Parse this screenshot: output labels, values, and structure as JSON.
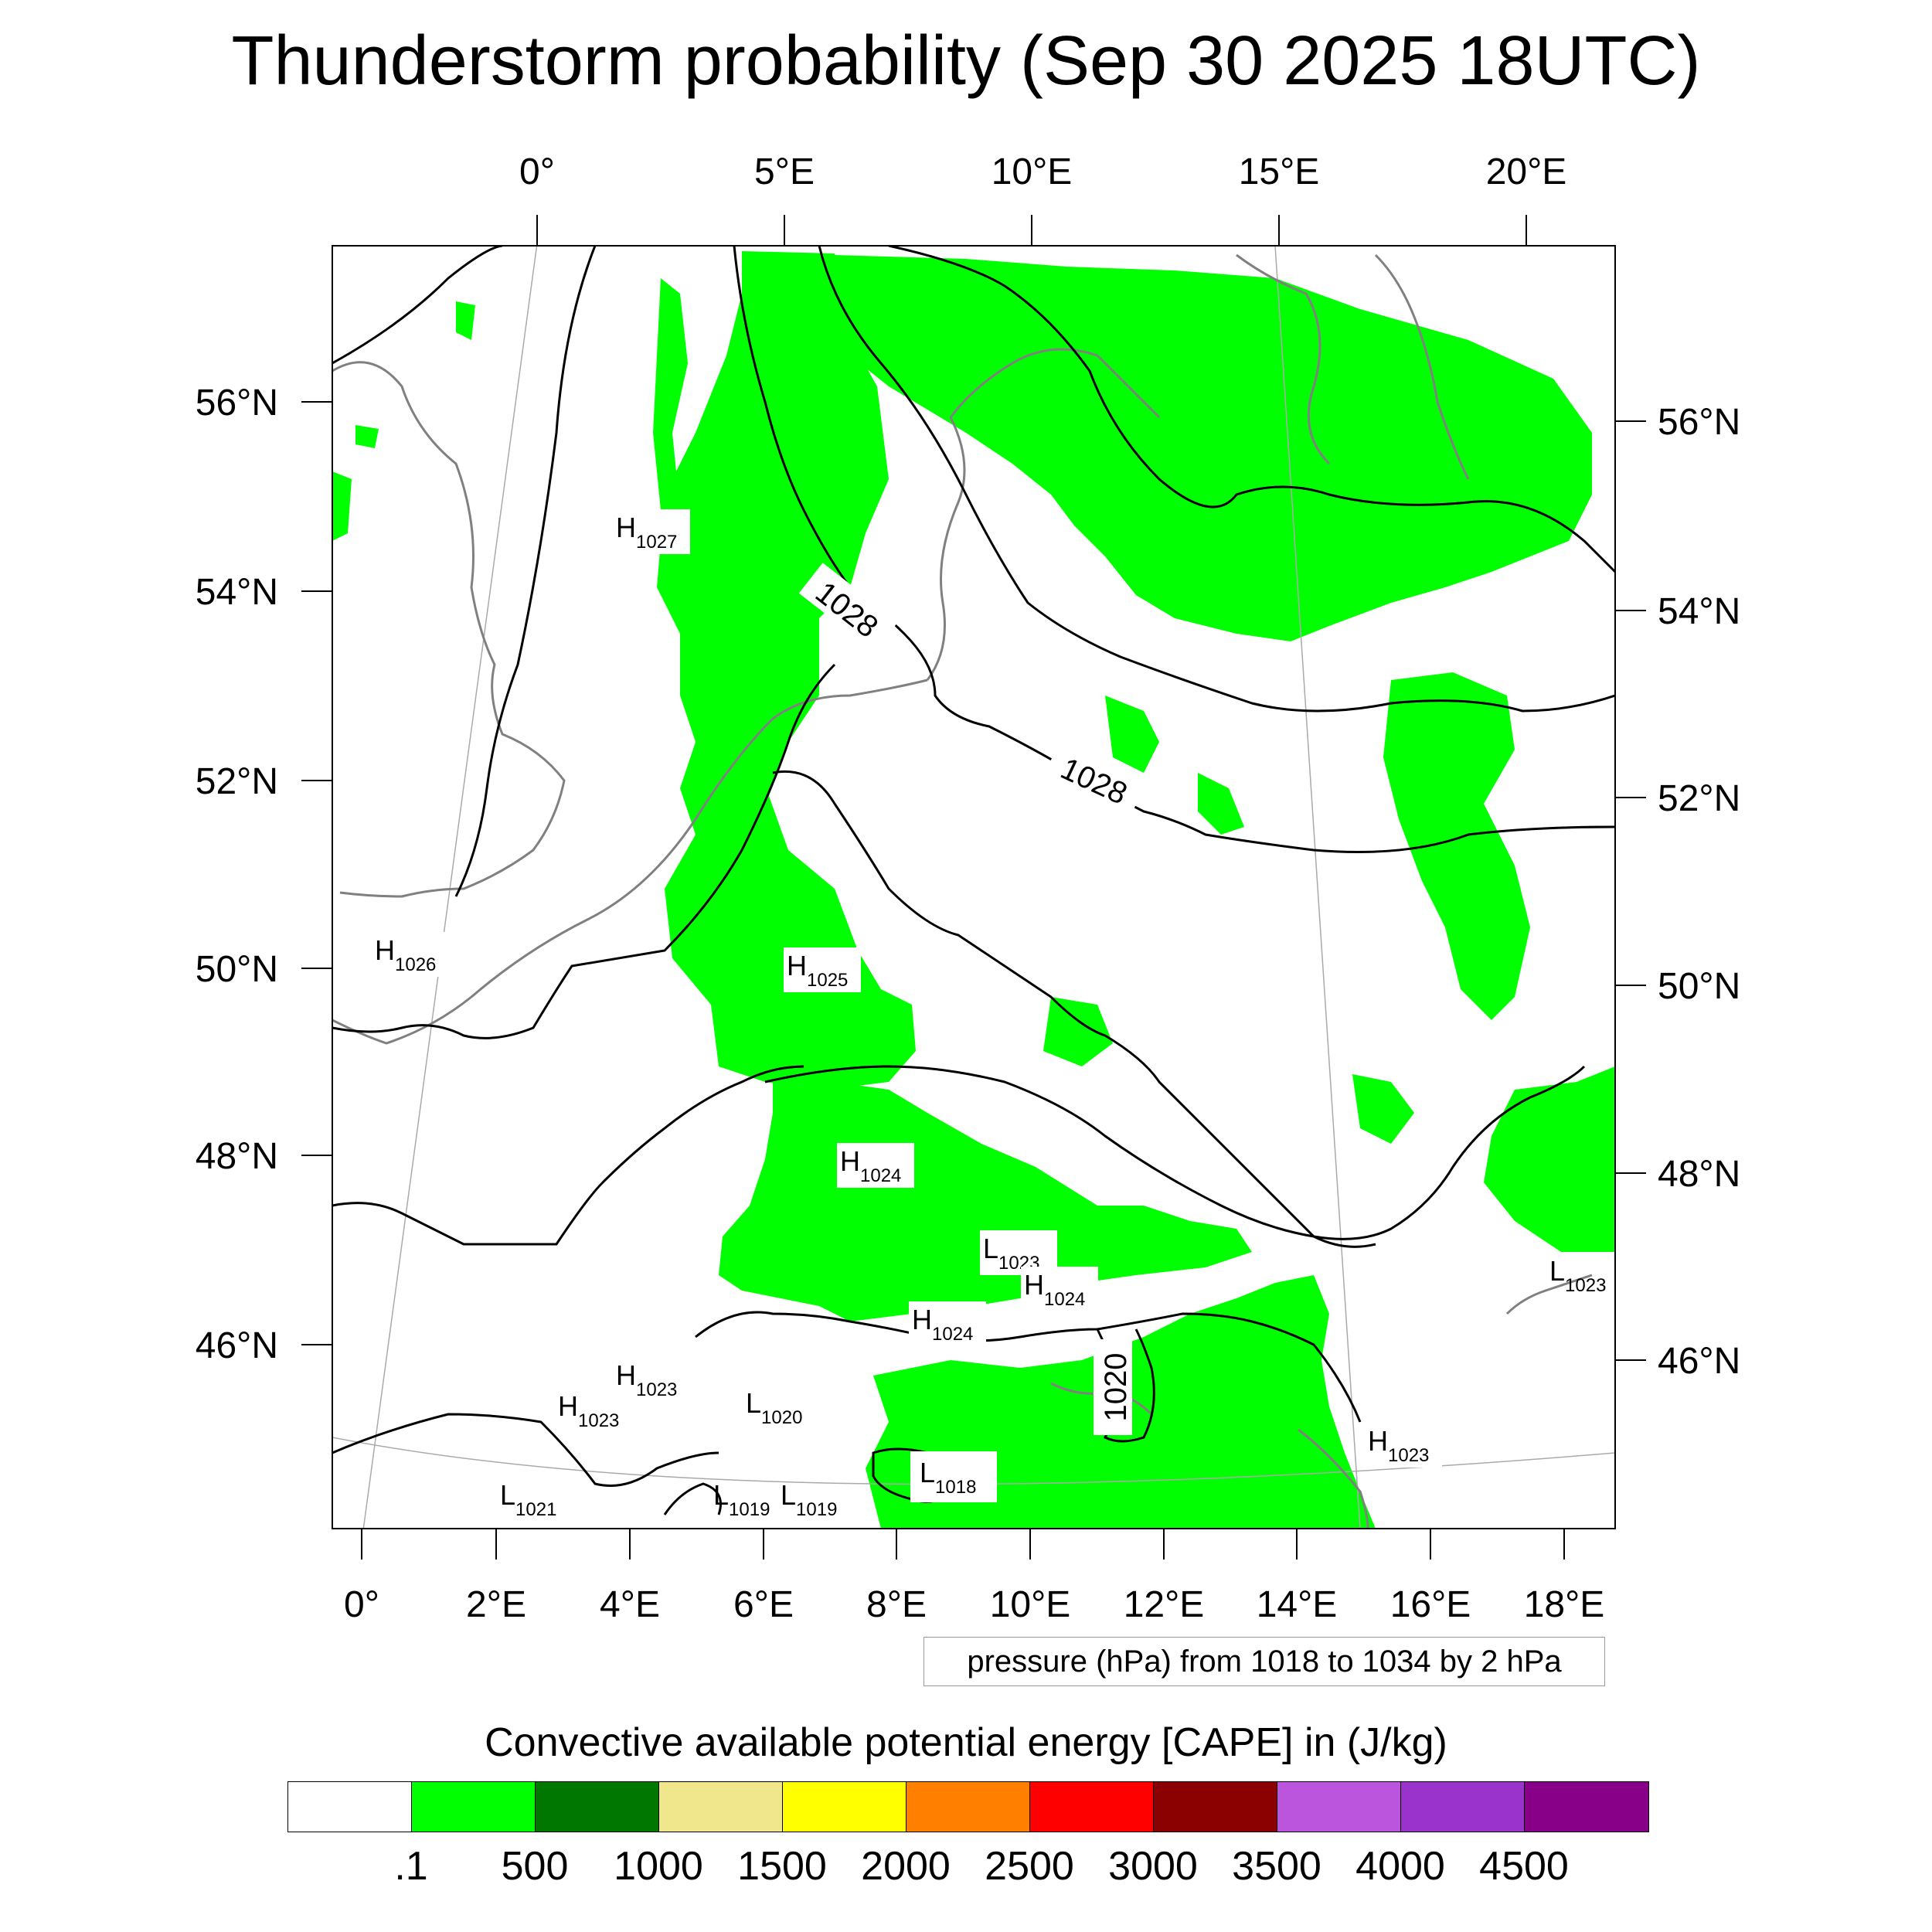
{
  "title": "Thunderstorm probability (Sep 30 2025 18UTC)",
  "map": {
    "top_lon_labels": [
      "0°",
      "5°E",
      "10°E",
      "15°E",
      "20°E"
    ],
    "bottom_lon_labels": [
      "0°",
      "2°E",
      "4°E",
      "6°E",
      "8°E",
      "10°E",
      "12°E",
      "14°E",
      "16°E",
      "18°E"
    ],
    "left_lat_labels": [
      "56°N",
      "54°N",
      "52°N",
      "50°N",
      "48°N",
      "46°N"
    ],
    "right_lat_labels": [
      "56°N",
      "54°N",
      "52°N",
      "50°N",
      "48°N",
      "46°N"
    ],
    "isobar_labels": [
      "1028",
      "1028",
      "1020"
    ],
    "centers": [
      {
        "letter": "H",
        "value": "1027"
      },
      {
        "letter": "H",
        "value": "1026"
      },
      {
        "letter": "H",
        "value": "1025"
      },
      {
        "letter": "H",
        "value": "1024"
      },
      {
        "letter": "L",
        "value": "1023"
      },
      {
        "letter": "H",
        "value": "1024"
      },
      {
        "letter": "H",
        "value": "1024"
      },
      {
        "letter": "L",
        "value": "1023"
      },
      {
        "letter": "H",
        "value": "1023"
      },
      {
        "letter": "H",
        "value": "1023"
      },
      {
        "letter": "L",
        "value": "1020"
      },
      {
        "letter": "H",
        "value": "1023"
      },
      {
        "letter": "L",
        "value": "1021"
      },
      {
        "letter": "L",
        "value": "1019"
      },
      {
        "letter": "L",
        "value": "1019"
      },
      {
        "letter": "L",
        "value": "1018"
      }
    ],
    "fill_color": "#00ff00",
    "isobar_color": "#000000",
    "coastline_color": "#808080"
  },
  "info_text": "pressure (hPa) from 1018 to 1034 by 2 hPa",
  "legend": {
    "title": "Convective available potential energy [CAPE] in (J/kg)",
    "colors": [
      "#ffffff",
      "#00ff00",
      "#007800",
      "#f0e68c",
      "#ffff00",
      "#ff8000",
      "#ff0000",
      "#8b0000",
      "#bb55dd",
      "#9933cc",
      "#880088"
    ],
    "labels": [
      ".1",
      "500",
      "1000",
      "1500",
      "2000",
      "2500",
      "3000",
      "3500",
      "4000",
      "4500"
    ]
  }
}
